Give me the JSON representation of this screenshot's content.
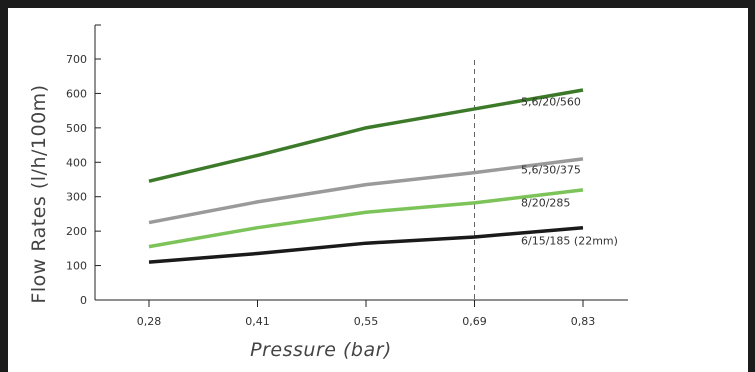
{
  "chart_data": {
    "type": "line",
    "title": "",
    "xlabel": "Pressure (bar)",
    "ylabel": "Flow Rates (l/h/100m)",
    "categories": [
      "0,28",
      "0,41",
      "0,55",
      "0,69",
      "0,83"
    ],
    "ylim": [
      0,
      700
    ],
    "yticks": [
      "0",
      "100",
      "200",
      "300",
      "400",
      "500",
      "600",
      "700"
    ],
    "grid": false,
    "marker_line_at": "0,69",
    "series": [
      {
        "name": "5,6/20/560",
        "color": "#3c7a2a",
        "values": [
          345,
          420,
          500,
          555,
          610
        ]
      },
      {
        "name": "5,6/30/375",
        "color": "#9a9a9a",
        "values": [
          225,
          285,
          335,
          370,
          410
        ]
      },
      {
        "name": "8/20/285",
        "color": "#7cc45a",
        "values": [
          155,
          210,
          255,
          282,
          320
        ]
      },
      {
        "name": "6/15/185 (22mm)",
        "color": "#1a1a1a",
        "values": [
          110,
          135,
          165,
          183,
          210
        ]
      }
    ]
  }
}
